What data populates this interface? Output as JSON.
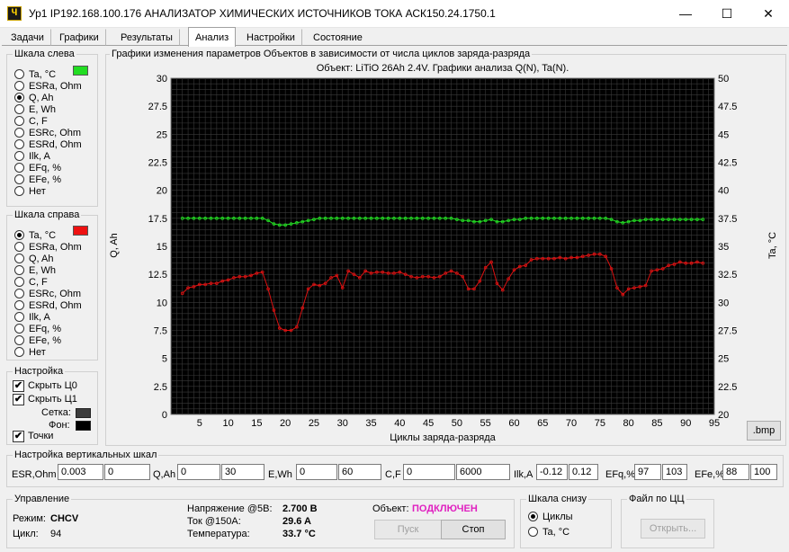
{
  "window": {
    "icon_glyph": "Ч",
    "title": "Ур1 IP192.168.100.176 АНАЛИЗАТОР ХИМИЧЕСКИХ ИСТОЧНИКОВ ТОКА АСК150.24.1750.1",
    "minimize": "—",
    "maximize": "☐",
    "close": "✕"
  },
  "tabs": [
    "Задачи",
    "Графики",
    "Результаты",
    "Анализ",
    "Настройки",
    "Состояние"
  ],
  "active_tab": "Анализ",
  "left_scale": {
    "title": "Шкала слева",
    "swatch_color": "#22dd22",
    "options": [
      "Ta, °C",
      "ESRa, Ohm",
      "Q, Ah",
      "E, Wh",
      "C, F",
      "ESRc, Ohm",
      "ESRd, Ohm",
      "Ilk, A",
      "EFq, %",
      "EFe, %",
      "Нет"
    ],
    "selected": "Q, Ah"
  },
  "right_scale": {
    "title": "Шкала справа",
    "swatch_color": "#ee1111",
    "options": [
      "Ta, °C",
      "ESRa, Ohm",
      "Q, Ah",
      "E, Wh",
      "C, F",
      "ESRc, Ohm",
      "ESRd, Ohm",
      "Ilk, A",
      "EFq, %",
      "EFe, %",
      "Нет"
    ],
    "selected": "Ta, °C"
  },
  "settings": {
    "title": "Настройка",
    "hide_c0": "Скрыть Ц0",
    "hide_c1": "Скрыть Ц1",
    "grid_label": "Сетка:",
    "bg_label": "Фон:",
    "points_label": "Точки",
    "grid_color": "#3c3c3c",
    "bg_color": "#000000"
  },
  "chart_panel": {
    "group_title": "Графики изменения параметров Объектов в зависимости от числа циклов заряда-разряда",
    "bmp_button": ".bmp"
  },
  "chart_data": {
    "type": "line",
    "title": "Объект: LiTiO 26Ah 2.4V. Графики анализа Q(N), Ta(N).",
    "xlabel": "Циклы заряда-разряда",
    "ylabel_left": "Q, Ah",
    "ylabel_right": "Ta, °C",
    "xlim": [
      0,
      95
    ],
    "ylim_left": [
      0,
      30
    ],
    "ylim_right": [
      20,
      50
    ],
    "x_ticks": [
      "5",
      "10",
      "15",
      "20",
      "25",
      "30",
      "35",
      "40",
      "45",
      "50",
      "55",
      "60",
      "65",
      "70",
      "75",
      "80",
      "85",
      "90",
      "95"
    ],
    "y_ticks_left": [
      "0",
      "2.5",
      "5",
      "7.5",
      "10",
      "12.5",
      "15",
      "17.5",
      "20",
      "22.5",
      "25",
      "27.5",
      "30"
    ],
    "y_ticks_right": [
      "20",
      "22.5",
      "25",
      "27.5",
      "30",
      "32.5",
      "35",
      "37.5",
      "40",
      "42.5",
      "45",
      "47.5",
      "50"
    ],
    "grid": true,
    "background": "#000000",
    "grid_color": "#3a3a3a",
    "series": [
      {
        "axis": "left",
        "color": "#22dd22",
        "x": [
          2,
          3,
          4,
          5,
          6,
          7,
          8,
          9,
          10,
          11,
          12,
          13,
          14,
          15,
          16,
          17,
          18,
          19,
          20,
          21,
          22,
          23,
          24,
          25,
          26,
          27,
          28,
          29,
          30,
          31,
          32,
          33,
          34,
          35,
          36,
          37,
          38,
          39,
          40,
          41,
          42,
          43,
          44,
          45,
          46,
          47,
          48,
          49,
          50,
          51,
          52,
          53,
          54,
          55,
          56,
          57,
          58,
          59,
          60,
          61,
          62,
          63,
          64,
          65,
          66,
          67,
          68,
          69,
          70,
          71,
          72,
          73,
          74,
          75,
          76,
          77,
          78,
          79,
          80,
          81,
          82,
          83,
          84,
          85,
          86,
          87,
          88,
          89,
          90,
          91,
          92,
          93
        ],
        "values": [
          17.5,
          17.5,
          17.5,
          17.5,
          17.5,
          17.5,
          17.5,
          17.5,
          17.5,
          17.5,
          17.5,
          17.5,
          17.5,
          17.5,
          17.5,
          17.3,
          17.0,
          16.9,
          16.9,
          17.0,
          17.1,
          17.2,
          17.3,
          17.4,
          17.5,
          17.5,
          17.5,
          17.5,
          17.5,
          17.5,
          17.5,
          17.5,
          17.5,
          17.5,
          17.5,
          17.5,
          17.5,
          17.5,
          17.5,
          17.5,
          17.5,
          17.5,
          17.5,
          17.5,
          17.5,
          17.5,
          17.5,
          17.5,
          17.4,
          17.3,
          17.3,
          17.2,
          17.2,
          17.3,
          17.4,
          17.2,
          17.2,
          17.3,
          17.4,
          17.4,
          17.5,
          17.5,
          17.5,
          17.5,
          17.5,
          17.5,
          17.5,
          17.5,
          17.5,
          17.5,
          17.5,
          17.5,
          17.5,
          17.5,
          17.5,
          17.4,
          17.2,
          17.1,
          17.2,
          17.3,
          17.3,
          17.4,
          17.4,
          17.4,
          17.4,
          17.4,
          17.4,
          17.4,
          17.4,
          17.4,
          17.4,
          17.4
        ]
      },
      {
        "axis": "right",
        "color": "#dd1111",
        "x": [
          2,
          3,
          4,
          5,
          6,
          7,
          8,
          9,
          10,
          11,
          12,
          13,
          14,
          15,
          16,
          17,
          18,
          19,
          20,
          21,
          22,
          23,
          24,
          25,
          26,
          27,
          28,
          29,
          30,
          31,
          32,
          33,
          34,
          35,
          36,
          37,
          38,
          39,
          40,
          41,
          42,
          43,
          44,
          45,
          46,
          47,
          48,
          49,
          50,
          51,
          52,
          53,
          54,
          55,
          56,
          57,
          58,
          59,
          60,
          61,
          62,
          63,
          64,
          65,
          66,
          67,
          68,
          69,
          70,
          71,
          72,
          73,
          74,
          75,
          76,
          77,
          78,
          79,
          80,
          81,
          82,
          83,
          84,
          85,
          86,
          87,
          88,
          89,
          90,
          91,
          92,
          93
        ],
        "values": [
          30.8,
          31.3,
          31.4,
          31.6,
          31.6,
          31.7,
          31.7,
          31.9,
          32.0,
          32.2,
          32.3,
          32.3,
          32.4,
          32.6,
          32.7,
          31.2,
          29.3,
          27.7,
          27.5,
          27.5,
          27.8,
          29.5,
          31.2,
          31.6,
          31.5,
          31.7,
          32.2,
          32.4,
          31.3,
          32.8,
          32.5,
          32.2,
          32.8,
          32.6,
          32.7,
          32.7,
          32.6,
          32.6,
          32.7,
          32.5,
          32.3,
          32.2,
          32.3,
          32.3,
          32.2,
          32.3,
          32.6,
          32.8,
          32.6,
          32.3,
          31.2,
          31.2,
          31.9,
          33.1,
          33.6,
          31.7,
          31.1,
          32.1,
          32.9,
          33.2,
          33.3,
          33.8,
          33.9,
          33.9,
          33.9,
          33.9,
          34.0,
          33.9,
          34.0,
          34.0,
          34.1,
          34.2,
          34.3,
          34.3,
          34.1,
          33.0,
          31.3,
          30.7,
          31.2,
          31.3,
          31.4,
          31.5,
          32.8,
          32.9,
          33.0,
          33.3,
          33.4,
          33.6,
          33.5,
          33.5,
          33.6,
          33.5
        ]
      }
    ]
  },
  "vertical_scales": {
    "title": "Настройка вертикальных шкал",
    "esr_label": "ESR,Ohm",
    "esr_min": "0.003",
    "esr_max": "0",
    "q_label": "Q,Ah",
    "q_min": "0",
    "q_max": "30",
    "e_label": "E,Wh",
    "e_min": "0",
    "e_max": "60",
    "c_label": "C,F",
    "c_min": "0",
    "c_max": "6000",
    "ilk_label": "Ilk,A",
    "ilk_min": "-0.12",
    "ilk_max": "0.12",
    "efq_label": "EFq,%",
    "efq_min": "97",
    "efq_max": "103",
    "efe_label": "EFe,%",
    "efe_min": "88",
    "efe_max": "100"
  },
  "control": {
    "title": "Управление",
    "mode_label": "Режим:",
    "mode_value": "CHCV",
    "cycle_label": "Цикл:",
    "cycle_value": "94",
    "voltage_label": "Напряжение @5В:",
    "voltage_value": "2.700 В",
    "current_label": "Ток @150A:",
    "current_value": "29.6 A",
    "temp_label": "Температура:",
    "temp_value": "33.7 °C",
    "object_label": "Объект:",
    "object_status": "ПОДКЛЮЧЕН",
    "start_button": "Пуск",
    "stop_button": "Стоп"
  },
  "bottom_scale": {
    "title": "Шкала снизу",
    "options": [
      "Циклы",
      "Ta, °C"
    ],
    "selected": "Циклы"
  },
  "file_group": {
    "title": "Файл по ЦЦ",
    "open_button": "Открыть..."
  }
}
